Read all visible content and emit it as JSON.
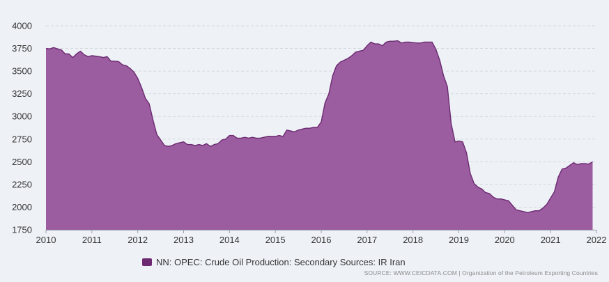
{
  "chart_data": {
    "type": "area",
    "series": [
      {
        "name": "NN: OPEC: Crude Oil Production: Secondary Sources: IR Iran",
        "x": [
          "2010-01",
          "2010-02",
          "2010-03",
          "2010-04",
          "2010-05",
          "2010-06",
          "2010-07",
          "2010-08",
          "2010-09",
          "2010-10",
          "2010-11",
          "2010-12",
          "2011-01",
          "2011-02",
          "2011-03",
          "2011-04",
          "2011-05",
          "2011-06",
          "2011-07",
          "2011-08",
          "2011-09",
          "2011-10",
          "2011-11",
          "2011-12",
          "2012-01",
          "2012-02",
          "2012-03",
          "2012-04",
          "2012-05",
          "2012-06",
          "2012-07",
          "2012-08",
          "2012-09",
          "2012-10",
          "2012-11",
          "2012-12",
          "2013-01",
          "2013-02",
          "2013-03",
          "2013-04",
          "2013-05",
          "2013-06",
          "2013-07",
          "2013-08",
          "2013-09",
          "2013-10",
          "2013-11",
          "2013-12",
          "2014-01",
          "2014-02",
          "2014-03",
          "2014-04",
          "2014-05",
          "2014-06",
          "2014-07",
          "2014-08",
          "2014-09",
          "2014-10",
          "2014-11",
          "2014-12",
          "2015-01",
          "2015-02",
          "2015-03",
          "2015-04",
          "2015-05",
          "2015-06",
          "2015-07",
          "2015-08",
          "2015-09",
          "2015-10",
          "2015-11",
          "2015-12",
          "2016-01",
          "2016-02",
          "2016-03",
          "2016-04",
          "2016-05",
          "2016-06",
          "2016-07",
          "2016-08",
          "2016-09",
          "2016-10",
          "2016-11",
          "2016-12",
          "2017-01",
          "2017-02",
          "2017-03",
          "2017-04",
          "2017-05",
          "2017-06",
          "2017-07",
          "2017-08",
          "2017-09",
          "2017-10",
          "2017-11",
          "2017-12",
          "2018-01",
          "2018-02",
          "2018-03",
          "2018-04",
          "2018-05",
          "2018-06",
          "2018-07",
          "2018-08",
          "2018-09",
          "2018-10",
          "2018-11",
          "2018-12",
          "2019-01",
          "2019-02",
          "2019-03",
          "2019-04",
          "2019-05",
          "2019-06",
          "2019-07",
          "2019-08",
          "2019-09",
          "2019-10",
          "2019-11",
          "2019-12",
          "2020-01",
          "2020-02",
          "2020-03",
          "2020-04",
          "2020-05",
          "2020-06",
          "2020-07",
          "2020-08",
          "2020-09",
          "2020-10",
          "2020-11",
          "2020-12",
          "2021-01",
          "2021-02",
          "2021-03",
          "2021-04",
          "2021-05",
          "2021-06",
          "2021-07",
          "2021-08",
          "2021-09",
          "2021-10",
          "2021-11",
          "2021-12"
        ],
        "values": [
          3750,
          3745,
          3760,
          3745,
          3735,
          3690,
          3690,
          3650,
          3690,
          3720,
          3680,
          3660,
          3670,
          3665,
          3660,
          3650,
          3660,
          3610,
          3610,
          3605,
          3570,
          3560,
          3530,
          3490,
          3420,
          3320,
          3200,
          3140,
          2960,
          2800,
          2740,
          2680,
          2670,
          2680,
          2700,
          2710,
          2720,
          2690,
          2690,
          2680,
          2690,
          2680,
          2700,
          2670,
          2690,
          2700,
          2740,
          2750,
          2790,
          2790,
          2760,
          2760,
          2770,
          2760,
          2770,
          2760,
          2760,
          2770,
          2780,
          2780,
          2780,
          2790,
          2780,
          2850,
          2840,
          2830,
          2850,
          2860,
          2870,
          2870,
          2880,
          2880,
          2940,
          3150,
          3250,
          3450,
          3560,
          3600,
          3620,
          3640,
          3670,
          3710,
          3720,
          3730,
          3780,
          3820,
          3800,
          3800,
          3780,
          3820,
          3830,
          3830,
          3835,
          3810,
          3820,
          3820,
          3815,
          3810,
          3810,
          3820,
          3820,
          3820,
          3740,
          3620,
          3450,
          3330,
          2920,
          2720,
          2730,
          2720,
          2600,
          2370,
          2260,
          2220,
          2200,
          2160,
          2150,
          2110,
          2090,
          2090,
          2080,
          2070,
          2020,
          1970,
          1960,
          1950,
          1940,
          1950,
          1960,
          1960,
          1990,
          2030,
          2100,
          2170,
          2330,
          2420,
          2430,
          2460,
          2490,
          2470,
          2480,
          2480,
          2475,
          2500
        ],
        "color": "#9b5ca0",
        "line_color": "#6c2a70"
      }
    ],
    "x_ticks": [
      "2010",
      "2011",
      "2012",
      "2013",
      "2014",
      "2015",
      "2016",
      "2017",
      "2018",
      "2019",
      "2020",
      "2021",
      "2022"
    ],
    "y_ticks": [
      "4000",
      "3750",
      "3500",
      "3250",
      "3000",
      "2750",
      "2500",
      "2250",
      "2000",
      "1750"
    ],
    "ylim": [
      1750,
      4000
    ],
    "xlim": [
      "2010-01",
      "2022-01"
    ],
    "grid": true,
    "legend_position": "bottom",
    "title": "",
    "xlabel": "",
    "ylabel": ""
  },
  "legend": {
    "label": "NN: OPEC: Crude Oil Production: Secondary Sources: IR Iran",
    "swatch_color": "#6c2a70"
  },
  "source_note": "SOURCE: WWW.CEICDATA.COM | Organization of the Petroleum Exporting Countries"
}
